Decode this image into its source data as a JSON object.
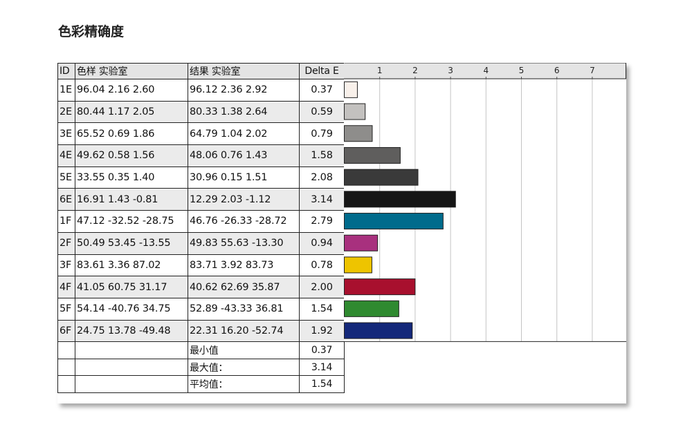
{
  "title": "色彩精确度",
  "table": {
    "headers": {
      "id": "ID",
      "sample": "色样 实验室",
      "result": "结果 实验室",
      "delta": "Delta E"
    },
    "rows": [
      {
        "id": "1E",
        "sample": "96.04  2.16  2.60",
        "result": "96.12  2.36  2.92",
        "delta": "0.37"
      },
      {
        "id": "2E",
        "sample": "80.44  1.17  2.05",
        "result": "80.33  1.38  2.64",
        "delta": "0.59"
      },
      {
        "id": "3E",
        "sample": "65.52  0.69  1.86",
        "result": "64.79  1.04  2.02",
        "delta": "0.79"
      },
      {
        "id": "4E",
        "sample": "49.62  0.58  1.56",
        "result": "48.06  0.76  1.43",
        "delta": "1.58"
      },
      {
        "id": "5E",
        "sample": "33.55  0.35  1.40",
        "result": "30.96  0.15  1.51",
        "delta": "2.08"
      },
      {
        "id": "6E",
        "sample": "16.91  1.43 -0.81",
        "result": "12.29  2.03 -1.12",
        "delta": "3.14"
      },
      {
        "id": "1F",
        "sample": "47.12 -32.52 -28.75",
        "result": "46.76 -26.33 -28.72",
        "delta": "2.79"
      },
      {
        "id": "2F",
        "sample": "50.49  53.45 -13.55",
        "result": "49.83  55.63 -13.30",
        "delta": "0.94"
      },
      {
        "id": "3F",
        "sample": "83.61  3.36  87.02",
        "result": "83.71  3.92  83.73",
        "delta": "0.78"
      },
      {
        "id": "4F",
        "sample": "41.05  60.75  31.17",
        "result": "40.62  62.69  35.87",
        "delta": "2.00"
      },
      {
        "id": "5F",
        "sample": "54.14 -40.76  34.75",
        "result": "52.89 -43.33  36.81",
        "delta": "1.54"
      },
      {
        "id": "6F",
        "sample": "24.75  13.78 -49.48",
        "result": "22.31  16.20 -52.74",
        "delta": "1.92"
      }
    ],
    "summary": [
      {
        "label": "最小值",
        "value": "0.37"
      },
      {
        "label": "最大值：",
        "value": "3.14"
      },
      {
        "label": "平均值：",
        "value": "1.54"
      }
    ]
  },
  "chart_data": {
    "type": "bar",
    "orientation": "horizontal",
    "categories": [
      "1E",
      "2E",
      "3E",
      "4E",
      "5E",
      "6E",
      "1F",
      "2F",
      "3F",
      "4F",
      "5F",
      "6F"
    ],
    "values": [
      0.37,
      0.59,
      0.79,
      1.58,
      2.08,
      3.14,
      2.79,
      0.94,
      0.78,
      2.0,
      1.54,
      1.92
    ],
    "colors": [
      "#f8f0ea",
      "#c3c1bf",
      "#8e8d8b",
      "#5f5e5d",
      "#3a3a3a",
      "#161616",
      "#006b8c",
      "#a8307e",
      "#eec400",
      "#a8102e",
      "#2f8a30",
      "#14287a"
    ],
    "xlim": [
      0,
      8
    ],
    "xticks": [
      "1",
      "2",
      "3",
      "4",
      "5",
      "6",
      "7"
    ],
    "grid": true
  }
}
